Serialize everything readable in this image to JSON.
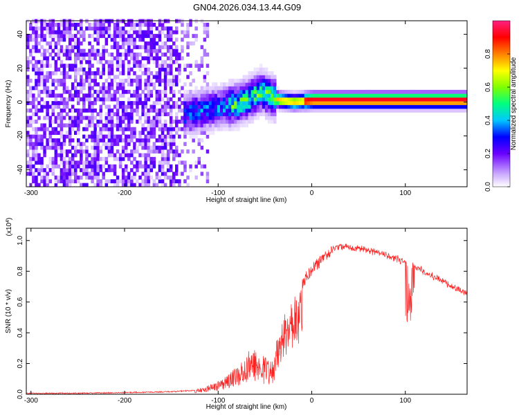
{
  "title": "GN04.2026.034.13.44.G09",
  "chart_data": [
    {
      "type": "heatmap",
      "xlabel": "Height of straight line (km)",
      "ylabel": "Frequency (Hz)",
      "xlim": [
        -305,
        166
      ],
      "ylim": [
        -50,
        48
      ],
      "xticks": [
        -300,
        -200,
        -100,
        0,
        100
      ],
      "yticks": [
        -40,
        -20,
        0,
        20,
        40
      ],
      "colorbar": {
        "label": "Normalized spectral amplitude",
        "range": [
          0.0,
          1.0
        ],
        "ticks": [
          0.0,
          0.2,
          0.4,
          0.6,
          0.8
        ]
      },
      "noise_region": {
        "x_range": [
          -305,
          -110
        ],
        "y_range": [
          -50,
          48
        ],
        "amplitude_range": [
          0.0,
          0.1
        ]
      },
      "signal_track": {
        "points": [
          {
            "x": -135,
            "y": -8
          },
          {
            "x": -120,
            "y": -6
          },
          {
            "x": -100,
            "y": -4
          },
          {
            "x": -80,
            "y": -2
          },
          {
            "x": -65,
            "y": 2
          },
          {
            "x": -55,
            "y": 5
          },
          {
            "x": -45,
            "y": 2
          },
          {
            "x": -35,
            "y": 0
          },
          {
            "x": -20,
            "y": -1
          },
          {
            "x": 0,
            "y": 0
          },
          {
            "x": 50,
            "y": 0
          },
          {
            "x": 100,
            "y": 0
          },
          {
            "x": 166,
            "y": 0
          }
        ],
        "peak_amplitude_range": [
          0.8,
          1.0
        ]
      }
    },
    {
      "type": "line",
      "xlabel": "Height of straight line (km)",
      "ylabel": "SNR (10 * v/v)",
      "yscale_label": "(x10",
      "yscale_exp": "4",
      "xlim": [
        -305,
        166
      ],
      "ylim": [
        0,
        1.08
      ],
      "xticks": [
        -300,
        -200,
        -100,
        0,
        100
      ],
      "yticks": [
        0.0,
        0.2,
        0.4,
        0.6,
        0.8,
        1.0
      ],
      "color": "#ff2020",
      "envelope": [
        {
          "x": -305,
          "y": 0.01
        },
        {
          "x": -250,
          "y": 0.01
        },
        {
          "x": -200,
          "y": 0.015
        },
        {
          "x": -150,
          "y": 0.02
        },
        {
          "x": -125,
          "y": 0.03
        },
        {
          "x": -110,
          "y": 0.06
        },
        {
          "x": -95,
          "y": 0.1
        },
        {
          "x": -80,
          "y": 0.18
        },
        {
          "x": -65,
          "y": 0.3
        },
        {
          "x": -55,
          "y": 0.3
        },
        {
          "x": -45,
          "y": 0.22
        },
        {
          "x": -35,
          "y": 0.4
        },
        {
          "x": -25,
          "y": 0.6
        },
        {
          "x": -15,
          "y": 0.72
        },
        {
          "x": 0,
          "y": 0.85
        },
        {
          "x": 15,
          "y": 0.94
        },
        {
          "x": 30,
          "y": 0.98
        },
        {
          "x": 50,
          "y": 0.97
        },
        {
          "x": 75,
          "y": 0.93
        },
        {
          "x": 100,
          "y": 0.88
        },
        {
          "x": 125,
          "y": 0.8
        },
        {
          "x": 150,
          "y": 0.72
        },
        {
          "x": 166,
          "y": 0.67
        }
      ],
      "dips": [
        {
          "x": 105,
          "y": 0.47
        }
      ]
    }
  ]
}
